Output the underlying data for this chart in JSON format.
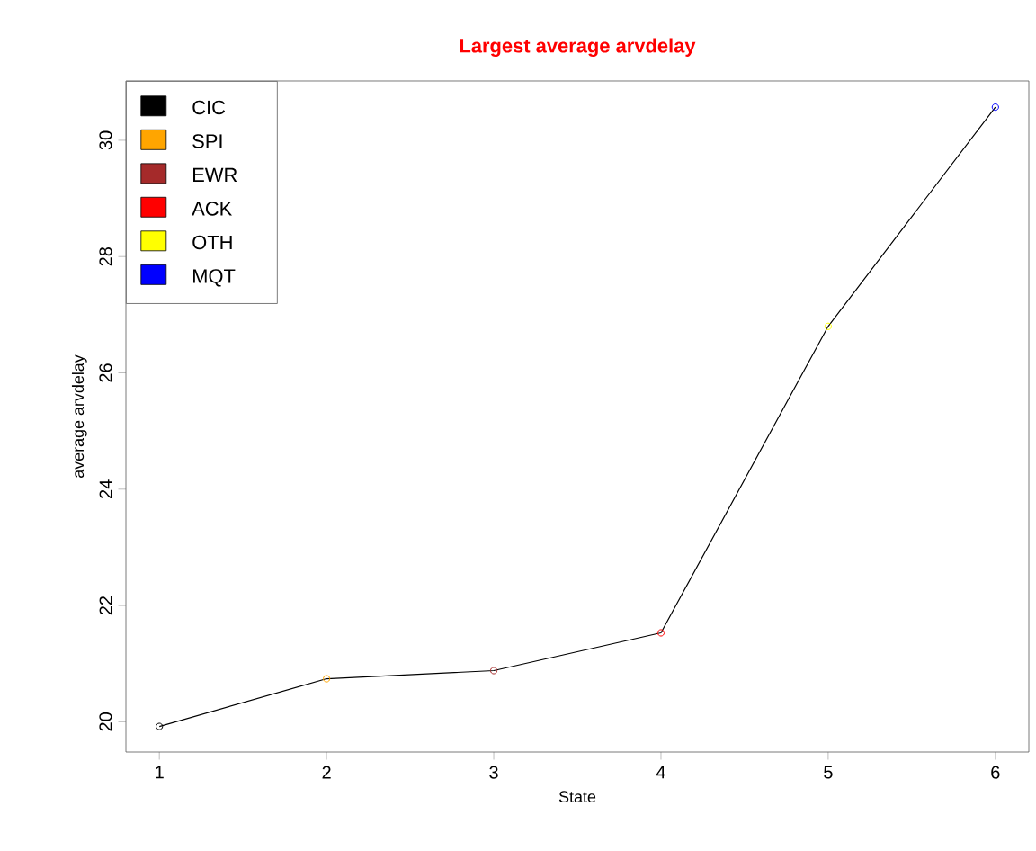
{
  "chart_data": {
    "type": "line",
    "title": "Largest average arvdelay",
    "xlabel": "State",
    "ylabel": "average arvdelay",
    "x": [
      1,
      2,
      3,
      4,
      5,
      6
    ],
    "series": [
      {
        "color": "#000000",
        "marker": "none",
        "values": [
          19.92,
          20.74,
          20.88,
          21.53,
          26.8,
          30.57
        ]
      },
      {
        "type": "scatter",
        "name": "CIC",
        "color": "#000000",
        "x": [
          1
        ],
        "values": [
          19.92
        ]
      },
      {
        "type": "scatter",
        "name": "SPI",
        "color": "#ffa500",
        "x": [
          2
        ],
        "values": [
          20.74
        ]
      },
      {
        "type": "scatter",
        "name": "EWR",
        "color": "#a52a2a",
        "x": [
          3
        ],
        "values": [
          20.88
        ]
      },
      {
        "type": "scatter",
        "name": "ACK",
        "color": "#ff0000",
        "x": [
          4
        ],
        "values": [
          21.53
        ]
      },
      {
        "type": "scatter",
        "name": "OTH",
        "color": "#ffff00",
        "x": [
          5
        ],
        "values": [
          26.8
        ]
      },
      {
        "type": "scatter",
        "name": "MQT",
        "color": "#0000ff",
        "x": [
          6
        ],
        "values": [
          30.57
        ]
      }
    ],
    "xlim": [
      0.8,
      6.2
    ],
    "ylim": [
      19.48,
      31.02
    ],
    "xticks": [
      1,
      2,
      3,
      4,
      5,
      6
    ],
    "yticks": [
      20,
      22,
      24,
      26,
      28,
      30
    ],
    "legend": "top left",
    "marker": "circle",
    "grid": false
  }
}
